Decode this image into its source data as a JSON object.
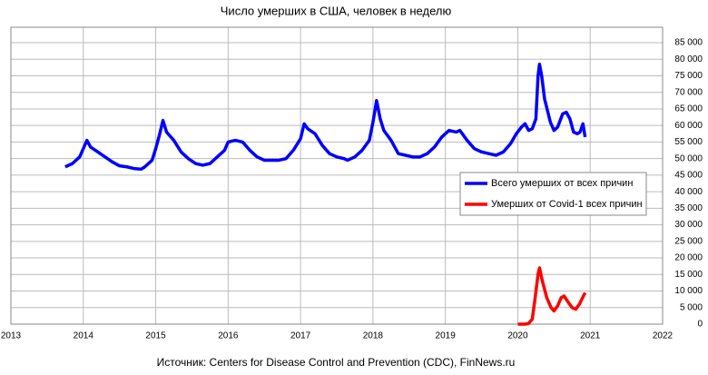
{
  "chart_data": {
    "type": "line",
    "title": "Число умерших в США, человек в неделю",
    "source": "Источник: Centers for Disease Control and Prevention (CDC), FinNews.ru",
    "xlim": [
      2013,
      2022
    ],
    "xticks": [
      2013,
      2014,
      2015,
      2016,
      2017,
      2018,
      2019,
      2020,
      2021,
      2022
    ],
    "ylim": [
      0,
      85000
    ],
    "yticks": [
      0,
      {
        "value": 5000,
        "label": "5 000"
      },
      {
        "value": 10000,
        "label": "10 000"
      },
      {
        "value": 15000,
        "label": "15 000"
      },
      {
        "value": 20000,
        "label": "20 000"
      },
      {
        "value": 25000,
        "label": "25 000"
      },
      {
        "value": 30000,
        "label": "30 000"
      },
      {
        "value": 35000,
        "label": "35 000"
      },
      {
        "value": 40000,
        "label": "40 000"
      },
      {
        "value": 45000,
        "label": "45 000"
      },
      {
        "value": 50000,
        "label": "50 000"
      },
      {
        "value": 55000,
        "label": "55 000"
      },
      {
        "value": 60000,
        "label": "60 000"
      },
      {
        "value": 65000,
        "label": "65 000"
      },
      {
        "value": 70000,
        "label": "70 000"
      },
      {
        "value": 75000,
        "label": "75 000"
      },
      {
        "value": 80000,
        "label": "80 000"
      },
      {
        "value": 85000,
        "label": "85 000"
      }
    ],
    "grid": true,
    "legend": "center right",
    "series": [
      {
        "name": "Всего умерших от всех причин",
        "color": "#0000ff",
        "x": [
          2013.75,
          2013.85,
          2013.95,
          2014.0,
          2014.05,
          2014.1,
          2014.2,
          2014.3,
          2014.4,
          2014.5,
          2014.6,
          2014.7,
          2014.8,
          2014.85,
          2014.95,
          2015.0,
          2015.05,
          2015.1,
          2015.15,
          2015.25,
          2015.35,
          2015.45,
          2015.55,
          2015.65,
          2015.75,
          2015.85,
          2015.95,
          2016.0,
          2016.1,
          2016.2,
          2016.3,
          2016.4,
          2016.5,
          2016.6,
          2016.7,
          2016.8,
          2016.9,
          2017.0,
          2017.05,
          2017.1,
          2017.2,
          2017.3,
          2017.4,
          2017.5,
          2017.6,
          2017.65,
          2017.75,
          2017.85,
          2017.95,
          2018.0,
          2018.05,
          2018.1,
          2018.15,
          2018.25,
          2018.35,
          2018.45,
          2018.55,
          2018.65,
          2018.75,
          2018.85,
          2018.95,
          2019.05,
          2019.15,
          2019.2,
          2019.3,
          2019.4,
          2019.5,
          2019.6,
          2019.7,
          2019.8,
          2019.9,
          2019.98,
          2020.05,
          2020.1,
          2020.15,
          2020.2,
          2020.25,
          2020.28,
          2020.3,
          2020.33,
          2020.37,
          2020.45,
          2020.5,
          2020.55,
          2020.62,
          2020.67,
          2020.72,
          2020.77,
          2020.82,
          2020.86,
          2020.9,
          2020.93
        ],
        "values": [
          47500,
          48500,
          50500,
          53000,
          55500,
          53500,
          52000,
          50500,
          49000,
          47800,
          47500,
          47000,
          46800,
          47500,
          49500,
          53000,
          57000,
          61500,
          58000,
          55500,
          52000,
          50000,
          48500,
          48000,
          48500,
          50500,
          52500,
          55000,
          55500,
          55000,
          52500,
          50500,
          49500,
          49500,
          49500,
          50000,
          52500,
          56000,
          60500,
          59000,
          57500,
          54000,
          51500,
          50500,
          50000,
          49500,
          50500,
          52500,
          55500,
          61000,
          67500,
          62000,
          58500,
          55500,
          51500,
          51000,
          50500,
          50500,
          51500,
          53500,
          56500,
          58500,
          58000,
          58500,
          55500,
          53000,
          52000,
          51500,
          51000,
          52000,
          54500,
          57500,
          59500,
          60500,
          58500,
          59000,
          62000,
          75000,
          78500,
          75000,
          68000,
          61000,
          58500,
          59500,
          63500,
          64000,
          62000,
          58000,
          57500,
          58000,
          60500,
          56500
        ]
      },
      {
        "name": "Умерших от Covid-1 всех причин",
        "color": "#ff0000",
        "x": [
          2020.0,
          2020.1,
          2020.15,
          2020.2,
          2020.24,
          2020.28,
          2020.3,
          2020.34,
          2020.4,
          2020.46,
          2020.5,
          2020.55,
          2020.6,
          2020.64,
          2020.7,
          2020.75,
          2020.8,
          2020.85,
          2020.93
        ],
        "values": [
          0,
          0,
          200,
          1500,
          8000,
          15000,
          17000,
          13000,
          8000,
          5000,
          4000,
          5500,
          8000,
          8500,
          6500,
          5000,
          4500,
          6000,
          9500
        ]
      }
    ]
  }
}
